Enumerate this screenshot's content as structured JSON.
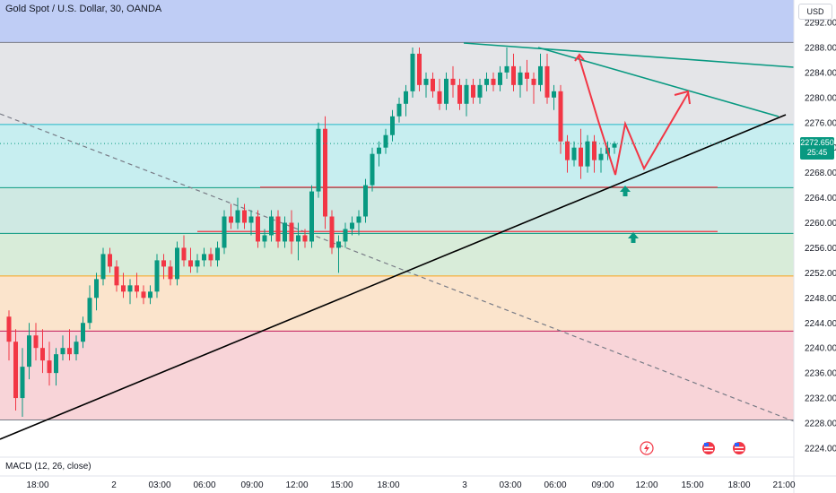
{
  "header": {
    "title": "Gold Spot / U.S. Dollar, 30, OANDA",
    "currency": "USD"
  },
  "price_badge": {
    "price": "2272.650",
    "countdown": "25:45"
  },
  "indicator": {
    "label": "MACD (12, 26, close)"
  },
  "colors": {
    "up": "#089981",
    "down": "#f23645",
    "trendline": "#000000",
    "channel": "#089981",
    "projection": "#f23645"
  },
  "chart_data": {
    "type": "candlestick",
    "y_range": [
      2222,
      2294
    ],
    "y_ticks": [
      2292,
      2288,
      2284,
      2280,
      2276,
      2272,
      2268,
      2264,
      2260,
      2256,
      2252,
      2248,
      2244,
      2240,
      2236,
      2232,
      2228,
      2224
    ],
    "y_tick_labels": [
      "2292.000",
      "2288.000",
      "2284.000",
      "2280.000",
      "2276.000",
      "2272.000",
      "2268.000",
      "2264.000",
      "2260.000",
      "2256.000",
      "2252.000",
      "2248.000",
      "2244.000",
      "2240.000",
      "2236.000",
      "2232.000",
      "2228.000",
      "2224.000"
    ],
    "x_ticks": [
      "18:00",
      "2",
      "03:00",
      "06:00",
      "09:00",
      "12:00",
      "15:00",
      "18:00",
      "3",
      "03:00",
      "06:00",
      "09:00",
      "12:00",
      "15:00",
      "18:00",
      "21:00"
    ],
    "zones": [
      {
        "from": 2288.8,
        "to": 2296,
        "color": "#bfcdf5"
      },
      {
        "from": 2275.7,
        "to": 2288.8,
        "color": "#e4e5e8"
      },
      {
        "from": 2265.6,
        "to": 2275.7,
        "color": "#c7eef0"
      },
      {
        "from": 2258.3,
        "to": 2265.6,
        "color": "#cfe9e3"
      },
      {
        "from": 2251.5,
        "to": 2258.3,
        "color": "#d8ecd9"
      },
      {
        "from": 2242.7,
        "to": 2251.5,
        "color": "#fbe4cc"
      },
      {
        "from": 2228.5,
        "to": 2242.7,
        "color": "#f8d4d8"
      }
    ],
    "level_lines": [
      {
        "price": 2288.8,
        "color": "#787b86"
      },
      {
        "price": 2275.7,
        "color": "#22b6c8"
      },
      {
        "price": 2265.6,
        "color": "#089981"
      },
      {
        "price": 2258.3,
        "color": "#089981"
      },
      {
        "price": 2251.5,
        "color": "#f7a21b"
      },
      {
        "price": 2242.7,
        "color": "#c2185b"
      },
      {
        "price": 2228.5,
        "color": "#787b86"
      }
    ],
    "candles": [
      {
        "o": 2245,
        "h": 2246,
        "l": 2238,
        "c": 2241
      },
      {
        "o": 2241,
        "h": 2243,
        "l": 2230,
        "c": 2232
      },
      {
        "o": 2232,
        "h": 2240,
        "l": 2229,
        "c": 2237
      },
      {
        "o": 2237,
        "h": 2244,
        "l": 2235,
        "c": 2242
      },
      {
        "o": 2242,
        "h": 2244,
        "l": 2238,
        "c": 2240
      },
      {
        "o": 2240,
        "h": 2243,
        "l": 2236,
        "c": 2238
      },
      {
        "o": 2238,
        "h": 2241,
        "l": 2234,
        "c": 2236
      },
      {
        "o": 2236,
        "h": 2240,
        "l": 2234,
        "c": 2239
      },
      {
        "o": 2239,
        "h": 2242,
        "l": 2238,
        "c": 2240
      },
      {
        "o": 2240,
        "h": 2243,
        "l": 2238,
        "c": 2239
      },
      {
        "o": 2239,
        "h": 2242,
        "l": 2238,
        "c": 2241
      },
      {
        "o": 2241,
        "h": 2245,
        "l": 2240,
        "c": 2244
      },
      {
        "o": 2244,
        "h": 2250,
        "l": 2243,
        "c": 2248
      },
      {
        "o": 2248,
        "h": 2252,
        "l": 2246,
        "c": 2251
      },
      {
        "o": 2251,
        "h": 2256,
        "l": 2250,
        "c": 2255
      },
      {
        "o": 2255,
        "h": 2256,
        "l": 2252,
        "c": 2253
      },
      {
        "o": 2253,
        "h": 2254,
        "l": 2249,
        "c": 2250
      },
      {
        "o": 2250,
        "h": 2252,
        "l": 2248,
        "c": 2249
      },
      {
        "o": 2249,
        "h": 2251,
        "l": 2247,
        "c": 2250
      },
      {
        "o": 2250,
        "h": 2252,
        "l": 2248,
        "c": 2249
      },
      {
        "o": 2249,
        "h": 2250,
        "l": 2247,
        "c": 2248
      },
      {
        "o": 2248,
        "h": 2250,
        "l": 2247,
        "c": 2249
      },
      {
        "o": 2249,
        "h": 2255,
        "l": 2248,
        "c": 2254
      },
      {
        "o": 2254,
        "h": 2255,
        "l": 2251,
        "c": 2253
      },
      {
        "o": 2253,
        "h": 2254,
        "l": 2250,
        "c": 2251
      },
      {
        "o": 2251,
        "h": 2257,
        "l": 2250,
        "c": 2256
      },
      {
        "o": 2256,
        "h": 2258,
        "l": 2253,
        "c": 2254
      },
      {
        "o": 2254,
        "h": 2256,
        "l": 2252,
        "c": 2253
      },
      {
        "o": 2253,
        "h": 2255,
        "l": 2252,
        "c": 2254
      },
      {
        "o": 2254,
        "h": 2256,
        "l": 2253,
        "c": 2255
      },
      {
        "o": 2255,
        "h": 2256,
        "l": 2253,
        "c": 2254
      },
      {
        "o": 2254,
        "h": 2257,
        "l": 2253,
        "c": 2256
      },
      {
        "o": 2256,
        "h": 2262,
        "l": 2255,
        "c": 2261
      },
      {
        "o": 2261,
        "h": 2263,
        "l": 2259,
        "c": 2260
      },
      {
        "o": 2260,
        "h": 2264,
        "l": 2259,
        "c": 2262
      },
      {
        "o": 2262,
        "h": 2263,
        "l": 2259,
        "c": 2260
      },
      {
        "o": 2260,
        "h": 2262,
        "l": 2258,
        "c": 2261
      },
      {
        "o": 2261,
        "h": 2262,
        "l": 2256,
        "c": 2257
      },
      {
        "o": 2257,
        "h": 2259,
        "l": 2256,
        "c": 2258
      },
      {
        "o": 2258,
        "h": 2262,
        "l": 2257,
        "c": 2261
      },
      {
        "o": 2261,
        "h": 2262,
        "l": 2256,
        "c": 2257
      },
      {
        "o": 2257,
        "h": 2261,
        "l": 2256,
        "c": 2260
      },
      {
        "o": 2260,
        "h": 2262,
        "l": 2255,
        "c": 2257
      },
      {
        "o": 2257,
        "h": 2260,
        "l": 2254,
        "c": 2258
      },
      {
        "o": 2258,
        "h": 2259,
        "l": 2256,
        "c": 2257
      },
      {
        "o": 2257,
        "h": 2266,
        "l": 2256,
        "c": 2265
      },
      {
        "o": 2265,
        "h": 2276,
        "l": 2264,
        "c": 2275
      },
      {
        "o": 2275,
        "h": 2277,
        "l": 2259,
        "c": 2261
      },
      {
        "o": 2261,
        "h": 2262,
        "l": 2255,
        "c": 2256
      },
      {
        "o": 2256,
        "h": 2258,
        "l": 2252,
        "c": 2257
      },
      {
        "o": 2257,
        "h": 2260,
        "l": 2256,
        "c": 2259
      },
      {
        "o": 2259,
        "h": 2261,
        "l": 2258,
        "c": 2260
      },
      {
        "o": 2260,
        "h": 2262,
        "l": 2258,
        "c": 2261
      },
      {
        "o": 2261,
        "h": 2267,
        "l": 2260,
        "c": 2266
      },
      {
        "o": 2266,
        "h": 2272,
        "l": 2265,
        "c": 2271
      },
      {
        "o": 2271,
        "h": 2273,
        "l": 2269,
        "c": 2272
      },
      {
        "o": 2272,
        "h": 2275,
        "l": 2271,
        "c": 2274
      },
      {
        "o": 2274,
        "h": 2278,
        "l": 2273,
        "c": 2277
      },
      {
        "o": 2277,
        "h": 2280,
        "l": 2276,
        "c": 2279
      },
      {
        "o": 2279,
        "h": 2282,
        "l": 2277,
        "c": 2281
      },
      {
        "o": 2281,
        "h": 2288,
        "l": 2280,
        "c": 2287
      },
      {
        "o": 2287,
        "h": 2288,
        "l": 2281,
        "c": 2282
      },
      {
        "o": 2282,
        "h": 2284,
        "l": 2280,
        "c": 2283
      },
      {
        "o": 2283,
        "h": 2284,
        "l": 2280,
        "c": 2281
      },
      {
        "o": 2281,
        "h": 2283,
        "l": 2278,
        "c": 2279
      },
      {
        "o": 2279,
        "h": 2284,
        "l": 2278,
        "c": 2283
      },
      {
        "o": 2283,
        "h": 2285,
        "l": 2280,
        "c": 2282
      },
      {
        "o": 2282,
        "h": 2283,
        "l": 2278,
        "c": 2279
      },
      {
        "o": 2279,
        "h": 2283,
        "l": 2277,
        "c": 2282
      },
      {
        "o": 2282,
        "h": 2283,
        "l": 2279,
        "c": 2280
      },
      {
        "o": 2280,
        "h": 2283,
        "l": 2279,
        "c": 2282
      },
      {
        "o": 2282,
        "h": 2284,
        "l": 2281,
        "c": 2283
      },
      {
        "o": 2283,
        "h": 2284,
        "l": 2281,
        "c": 2282
      },
      {
        "o": 2282,
        "h": 2285,
        "l": 2281,
        "c": 2284
      },
      {
        "o": 2284,
        "h": 2288,
        "l": 2283,
        "c": 2285
      },
      {
        "o": 2285,
        "h": 2287,
        "l": 2281,
        "c": 2282
      },
      {
        "o": 2282,
        "h": 2285,
        "l": 2280,
        "c": 2284
      },
      {
        "o": 2284,
        "h": 2286,
        "l": 2281,
        "c": 2283
      },
      {
        "o": 2283,
        "h": 2284,
        "l": 2279,
        "c": 2282
      },
      {
        "o": 2282,
        "h": 2287,
        "l": 2281,
        "c": 2285
      },
      {
        "o": 2285,
        "h": 2287,
        "l": 2279,
        "c": 2280
      },
      {
        "o": 2280,
        "h": 2282,
        "l": 2278,
        "c": 2281
      },
      {
        "o": 2281,
        "h": 2282,
        "l": 2271,
        "c": 2273
      },
      {
        "o": 2273,
        "h": 2274,
        "l": 2268,
        "c": 2270
      },
      {
        "o": 2270,
        "h": 2273,
        "l": 2269,
        "c": 2272
      },
      {
        "o": 2272,
        "h": 2275,
        "l": 2267,
        "c": 2269
      },
      {
        "o": 2269,
        "h": 2274,
        "l": 2268,
        "c": 2273
      },
      {
        "o": 2273,
        "h": 2274,
        "l": 2268,
        "c": 2270
      },
      {
        "o": 2270,
        "h": 2272,
        "l": 2268,
        "c": 2271
      },
      {
        "o": 2271,
        "h": 2273,
        "l": 2270,
        "c": 2272
      },
      {
        "o": 2272,
        "h": 2273,
        "l": 2271,
        "c": 2272.65
      }
    ],
    "candle_x_start": 10,
    "candle_x_step": 7.5
  }
}
